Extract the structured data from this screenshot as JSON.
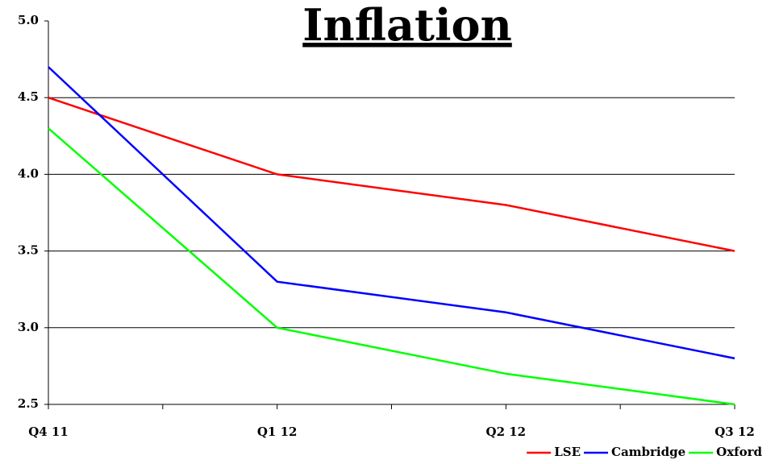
{
  "chart_data": {
    "type": "line",
    "title": "Inflation",
    "categories": [
      "Q4 11",
      "Q1 12",
      "Q2 12",
      "Q3 12"
    ],
    "series": [
      {
        "name": "LSE",
        "color": "#ff0000",
        "values": [
          4.5,
          4.0,
          3.8,
          3.5
        ]
      },
      {
        "name": "Cambridge",
        "color": "#0000ff",
        "values": [
          4.7,
          3.3,
          3.1,
          2.8
        ]
      },
      {
        "name": "Oxford",
        "color": "#00ff00",
        "values": [
          4.3,
          3.0,
          2.7,
          2.5
        ]
      }
    ],
    "ylim": [
      2.5,
      5.0
    ],
    "yticks": [
      2.5,
      {
        "value": 3,
        "label": "3.0"
      },
      3.5,
      {
        "value": 4,
        "label": "4.0"
      },
      4.5,
      {
        "value": 5,
        "label": "5.0"
      }
    ],
    "grid": true,
    "legend": "bottom-right"
  }
}
